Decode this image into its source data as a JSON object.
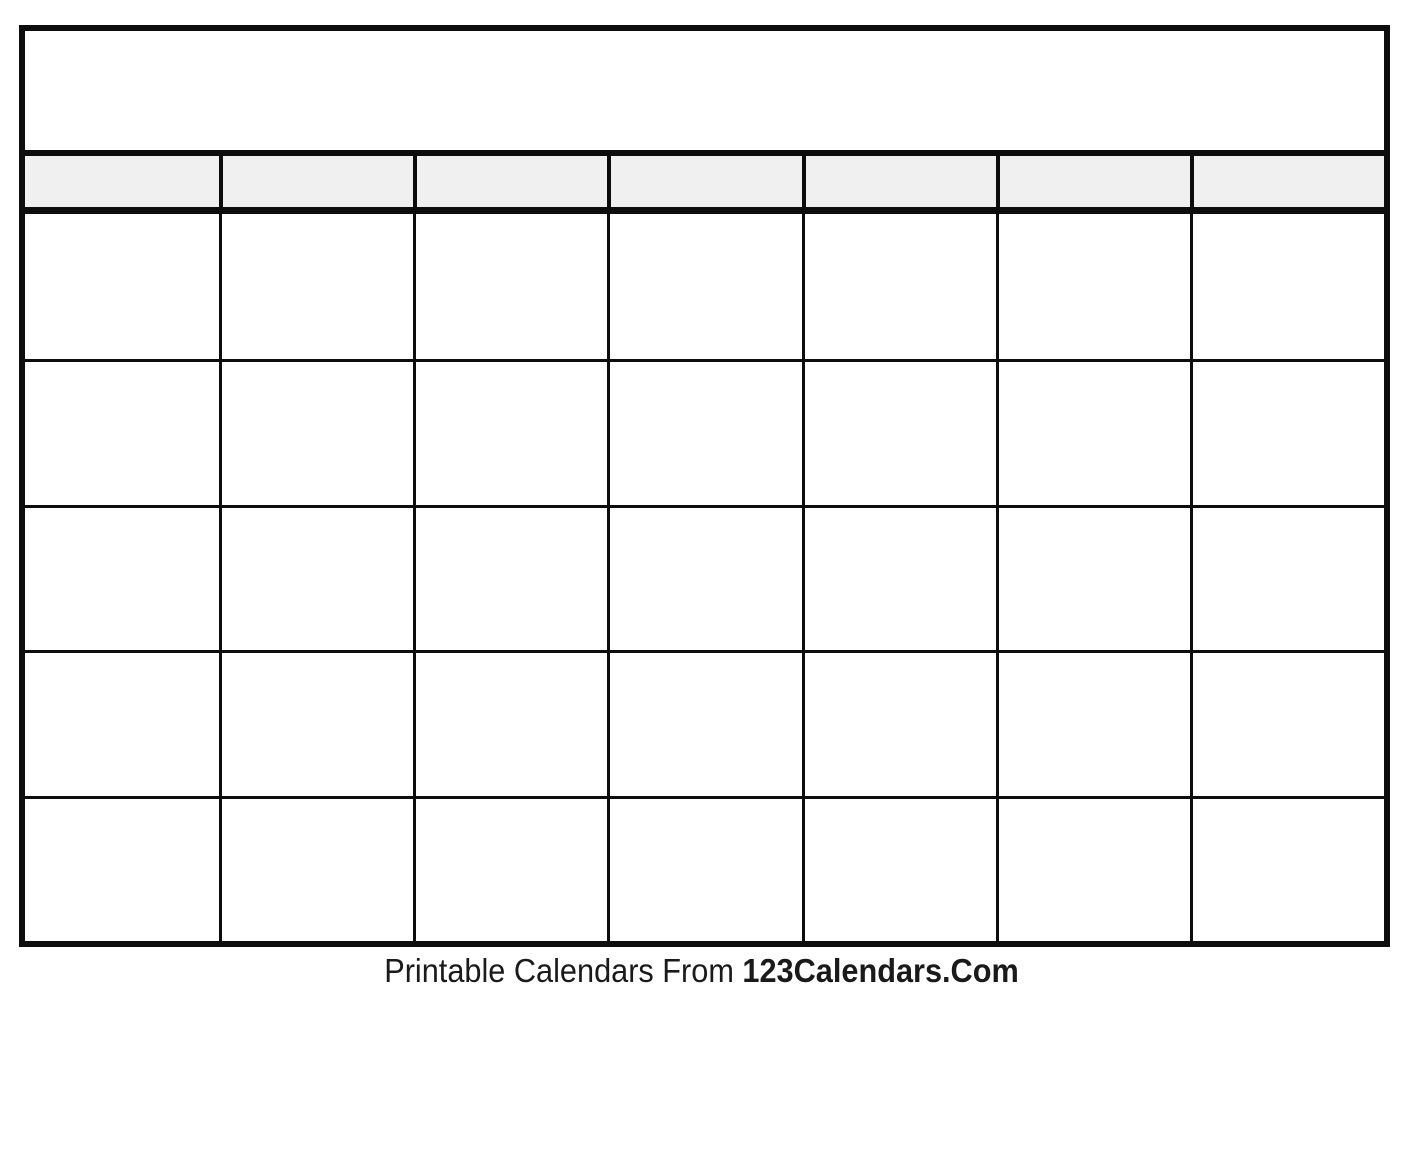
{
  "calendar": {
    "title_text": "",
    "columns": 7,
    "rows": 5,
    "weekday_labels": [
      "",
      "",
      "",
      "",
      "",
      "",
      ""
    ]
  },
  "footer": {
    "prefix": "Printable Calendars From ",
    "brand": "123Calendars.Com"
  },
  "colors": {
    "grid_line": "#0d0d0d",
    "header_fill": "#f0f0f0",
    "page_background": "#ffffff",
    "footer_text": "#1a1a1a"
  }
}
